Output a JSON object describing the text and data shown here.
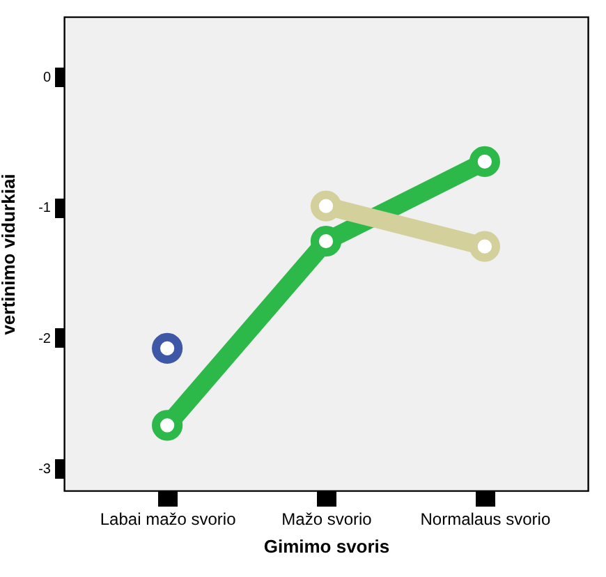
{
  "chart_data": {
    "type": "line",
    "xlabel": "Gimimo svoris",
    "ylabel": "vertinimo vidurkiai",
    "categories": [
      "Labai mažo svorio",
      "Mažo svorio",
      "Normalaus svorio"
    ],
    "series": [
      {
        "color": "#2db84a",
        "values": [
          -2.67,
          -1.26,
          -0.65
        ]
      },
      {
        "color": "#d4d09c",
        "values": [
          null,
          -0.99,
          -1.3
        ]
      },
      {
        "color": "#3e57a6",
        "values": [
          -2.08,
          null,
          null
        ]
      }
    ],
    "ylim": [
      -3.17,
      0.46
    ],
    "yticks": [
      -3,
      -2,
      -1,
      0
    ],
    "grid": false,
    "legend": false,
    "marker": "circle",
    "line_style": "solid"
  }
}
